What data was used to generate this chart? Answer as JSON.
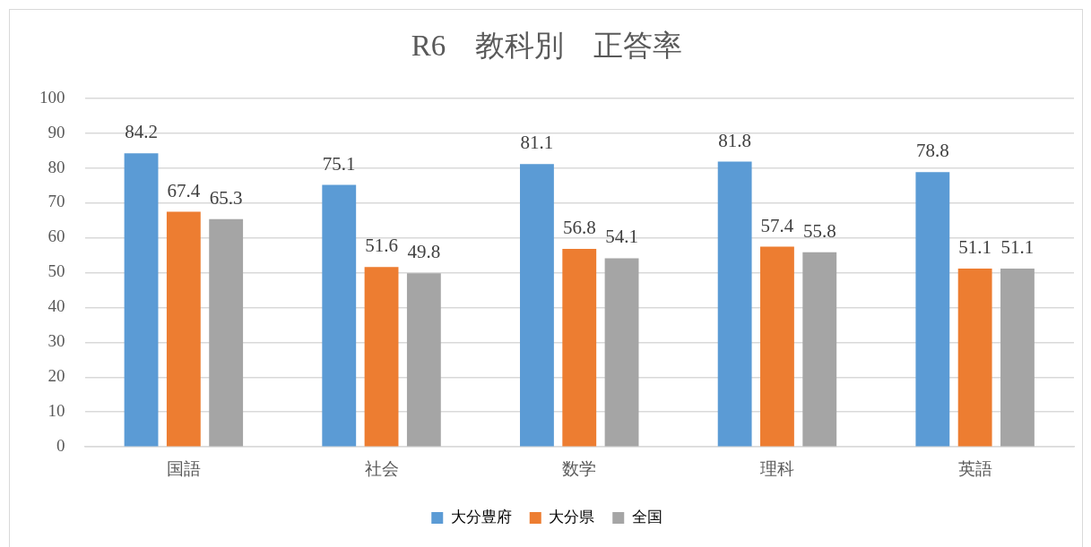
{
  "chart_data": {
    "type": "bar",
    "title": "R6　教科別　正答率",
    "categories": [
      "国語",
      "社会",
      "数学",
      "理科",
      "英語"
    ],
    "series": [
      {
        "name": "大分豊府",
        "color": "#5b9bd5",
        "values": [
          84.2,
          75.1,
          81.1,
          81.8,
          78.8
        ]
      },
      {
        "name": "大分県",
        "color": "#ed7d31",
        "values": [
          67.4,
          51.6,
          56.8,
          57.4,
          51.1
        ]
      },
      {
        "name": "全国",
        "color": "#a5a5a5",
        "values": [
          65.3,
          49.8,
          54.1,
          55.8,
          51.1
        ]
      }
    ],
    "ylim": [
      0,
      100
    ],
    "yticks": [
      0,
      10,
      20,
      30,
      40,
      50,
      60,
      70,
      80,
      90,
      100
    ],
    "grid": "y",
    "legend": "bottom",
    "data_labels": true
  }
}
